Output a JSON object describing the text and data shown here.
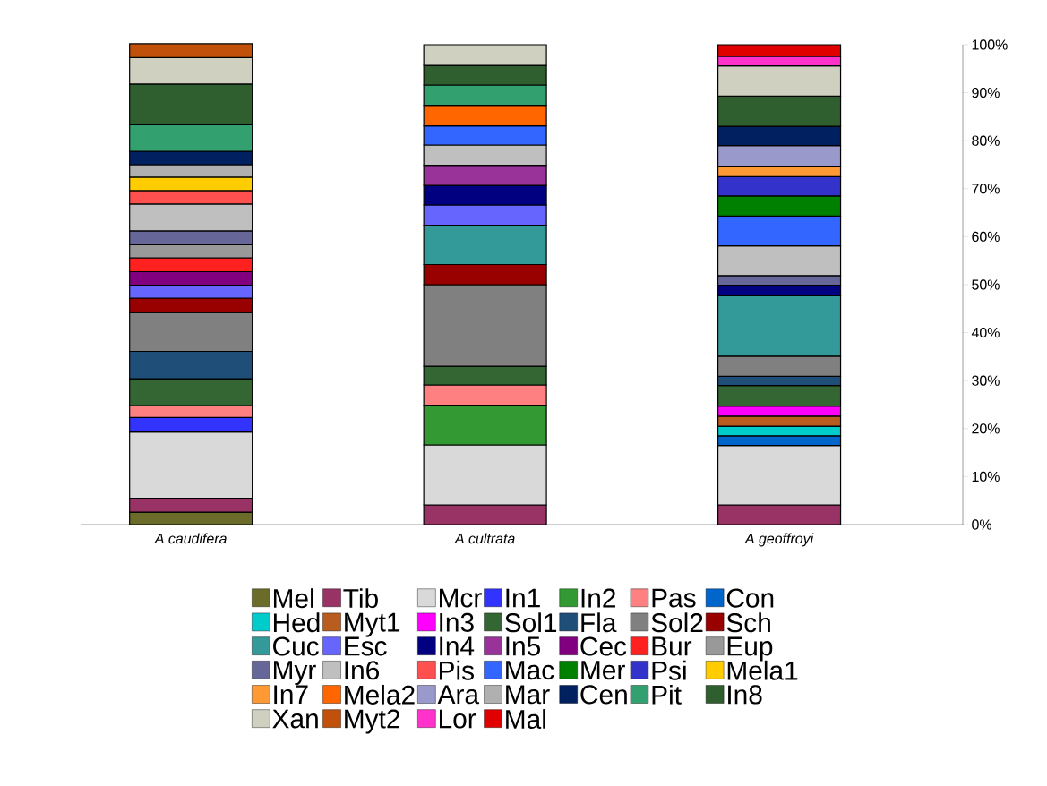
{
  "chart_data": {
    "type": "bar",
    "stacked": true,
    "categories": [
      "A caudifera",
      "A cultrata",
      "A geoffroyi"
    ],
    "series": [
      {
        "name": "Mel",
        "color": "#6b6b2a",
        "values": [
          2.6,
          null,
          null
        ]
      },
      {
        "name": "Tib",
        "color": "#993366",
        "values": [
          2.9,
          4.1,
          4.1
        ]
      },
      {
        "name": "Mcr",
        "color": "#d9d9d9",
        "values": [
          13.8,
          12.5,
          12.4
        ]
      },
      {
        "name": "In1",
        "color": "#3333ff",
        "values": [
          3.0,
          null,
          null
        ]
      },
      {
        "name": "In2",
        "color": "#339933",
        "values": [
          null,
          8.3,
          null
        ]
      },
      {
        "name": "Pas",
        "color": "#ff8080",
        "values": [
          2.5,
          4.2,
          null
        ]
      },
      {
        "name": "Con",
        "color": "#0066cc",
        "values": [
          null,
          null,
          2.0
        ]
      },
      {
        "name": "Hed",
        "color": "#00cccc",
        "values": [
          null,
          null,
          2.0
        ]
      },
      {
        "name": "Myt1",
        "color": "#b85c1f",
        "values": [
          null,
          null,
          2.1
        ]
      },
      {
        "name": "In3",
        "color": "#ff00ff",
        "values": [
          null,
          null,
          2.1
        ]
      },
      {
        "name": "Sol1",
        "color": "#336633",
        "values": [
          5.6,
          3.9,
          4.3
        ]
      },
      {
        "name": "Fla",
        "color": "#1f4e79",
        "values": [
          5.7,
          null,
          1.9
        ]
      },
      {
        "name": "Sol2",
        "color": "#808080",
        "values": [
          8.1,
          17.0,
          4.2
        ]
      },
      {
        "name": "Sch",
        "color": "#990000",
        "values": [
          3.0,
          4.2,
          null
        ]
      },
      {
        "name": "Cuc",
        "color": "#339999",
        "values": [
          null,
          8.2,
          12.6
        ]
      },
      {
        "name": "Esc",
        "color": "#6666ff",
        "values": [
          2.7,
          4.2,
          null
        ]
      },
      {
        "name": "In4",
        "color": "#000080",
        "values": [
          null,
          4.1,
          2.2
        ]
      },
      {
        "name": "In5",
        "color": "#993399",
        "values": [
          null,
          4.2,
          null
        ]
      },
      {
        "name": "Cec",
        "color": "#800080",
        "values": [
          2.8,
          null,
          null
        ]
      },
      {
        "name": "Bur",
        "color": "#ff2020",
        "values": [
          2.9,
          null,
          null
        ]
      },
      {
        "name": "Eup",
        "color": "#999999",
        "values": [
          2.7,
          null,
          null
        ]
      },
      {
        "name": "Myr",
        "color": "#666699",
        "values": [
          2.9,
          null,
          2.0
        ]
      },
      {
        "name": "In6",
        "color": "#bfbfbf",
        "values": [
          5.6,
          4.2,
          6.2
        ]
      },
      {
        "name": "Pis",
        "color": "#ff5050",
        "values": [
          2.8,
          null,
          null
        ]
      },
      {
        "name": "Mac",
        "color": "#3366ff",
        "values": [
          null,
          4.0,
          6.2
        ]
      },
      {
        "name": "Mer",
        "color": "#008000",
        "values": [
          null,
          null,
          4.2
        ]
      },
      {
        "name": "Psi",
        "color": "#3333cc",
        "values": [
          null,
          null,
          4.0
        ]
      },
      {
        "name": "Mela1",
        "color": "#ffcc00",
        "values": [
          2.8,
          null,
          null
        ]
      },
      {
        "name": "In7",
        "color": "#ff9933",
        "values": [
          null,
          null,
          2.2
        ]
      },
      {
        "name": "Mela2",
        "color": "#ff6600",
        "values": [
          null,
          4.3,
          null
        ]
      },
      {
        "name": "Ara",
        "color": "#9999cc",
        "values": [
          null,
          null,
          4.3
        ]
      },
      {
        "name": "Mar",
        "color": "#b0b0b0",
        "values": [
          2.6,
          null,
          null
        ]
      },
      {
        "name": "Cen",
        "color": "#002060",
        "values": [
          2.8,
          null,
          4.0
        ]
      },
      {
        "name": "Pit",
        "color": "#33a070",
        "values": [
          5.5,
          4.2,
          null
        ]
      },
      {
        "name": "In8",
        "color": "#2f5f2f",
        "values": [
          8.5,
          4.1,
          6.3
        ]
      },
      {
        "name": "Xan",
        "color": "#d0d0c0",
        "values": [
          5.5,
          4.3,
          6.3
        ]
      },
      {
        "name": "Myt2",
        "color": "#c0500a",
        "values": [
          2.9,
          null,
          null
        ]
      },
      {
        "name": "Lor",
        "color": "#ff33cc",
        "values": [
          null,
          null,
          2.0
        ]
      },
      {
        "name": "Mal",
        "color": "#e00000",
        "values": [
          null,
          null,
          2.4
        ]
      }
    ],
    "ylim": [
      0,
      100
    ],
    "yticks": [
      {
        "value": 0,
        "label": "0%"
      },
      {
        "value": 10,
        "label": "10%"
      },
      {
        "value": 20,
        "label": "20%"
      },
      {
        "value": 30,
        "label": "30%"
      },
      {
        "value": 40,
        "label": "40%"
      },
      {
        "value": 50,
        "label": "50%"
      },
      {
        "value": 60,
        "label": "60%"
      },
      {
        "value": 70,
        "label": "70%"
      },
      {
        "value": 80,
        "label": "80%"
      },
      {
        "value": 90,
        "label": "90%"
      },
      {
        "value": 100,
        "label": "100%"
      }
    ],
    "legend": "bottom"
  }
}
